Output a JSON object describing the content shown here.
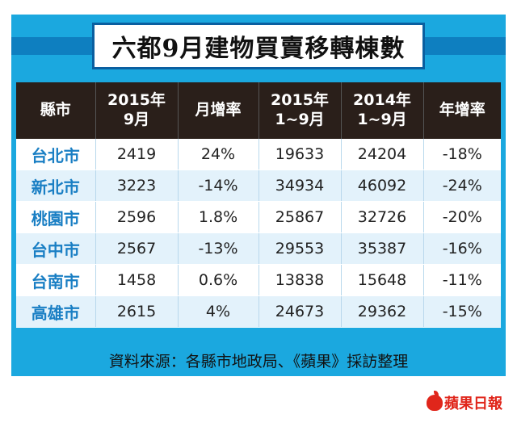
{
  "title": "六都9月建物買賣移轉棟數",
  "table": {
    "headers": [
      {
        "line1": "縣市",
        "line2": ""
      },
      {
        "line1": "2015年",
        "line2": "9月"
      },
      {
        "line1": "月增率",
        "line2": ""
      },
      {
        "line1": "2015年",
        "line2": "1~9月"
      },
      {
        "line1": "2014年",
        "line2": "1~9月"
      },
      {
        "line1": "年增率",
        "line2": ""
      }
    ],
    "rows": [
      [
        "台北市",
        "2419",
        "24%",
        "19633",
        "24204",
        "-18%"
      ],
      [
        "新北市",
        "3223",
        "-14%",
        "34934",
        "46092",
        "-24%"
      ],
      [
        "桃園市",
        "2596",
        "1.8%",
        "25867",
        "32726",
        "-20%"
      ],
      [
        "台中市",
        "2567",
        "-13%",
        "29553",
        "35387",
        "-16%"
      ],
      [
        "台南市",
        "1458",
        "0.6%",
        "13838",
        "15648",
        "-11%"
      ],
      [
        "高雄市",
        "2615",
        "4%",
        "24673",
        "29362",
        "-15%"
      ]
    ]
  },
  "source": "資料來源：各縣市地政局、《蘋果》採訪整理",
  "logo_text": "蘋果日報",
  "colors": {
    "frame": "#1ba8df",
    "header_bg": "#2a1f1a",
    "city_text": "#1a7fc4",
    "logo": "#e0261b"
  }
}
